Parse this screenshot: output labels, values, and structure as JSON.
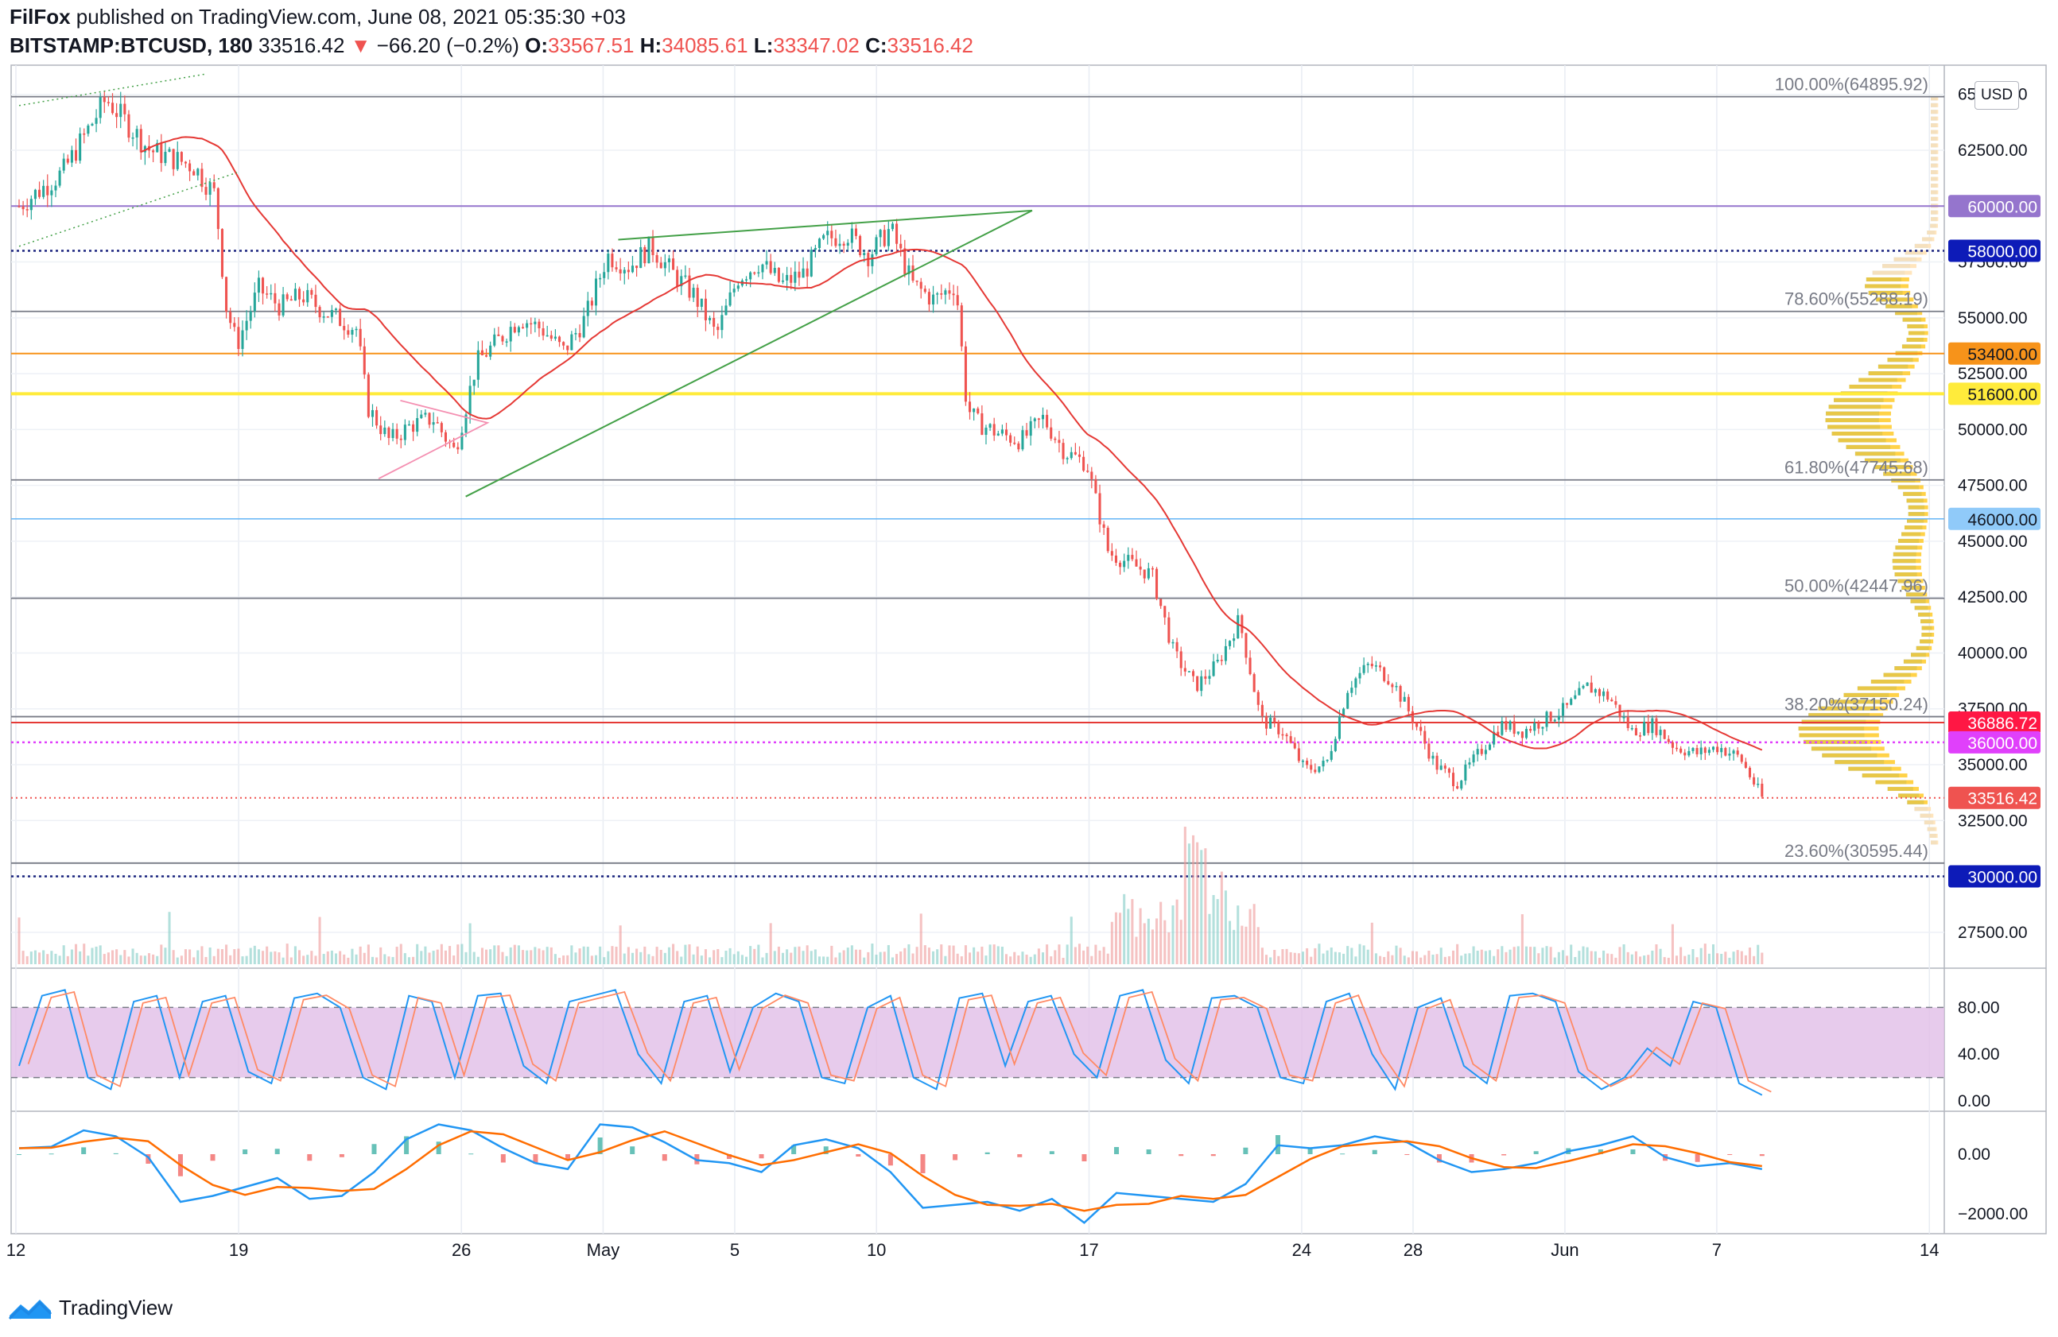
{
  "header": {
    "line1": {
      "author": "FilFox",
      "published_text": " published on TradingView.com, June 08, 2021 05:35:30 +03"
    },
    "line2": {
      "symbol": "BITSTAMP:BTCUSD, 180",
      "last": "33516.42",
      "arrow": "▼",
      "change": "−66.20 (−0.2%)",
      "o_label": "O:",
      "o_value": "33567.51",
      "h_label": "H:",
      "h_value": "34085.61",
      "l_label": "L:",
      "l_value": "33347.02",
      "c_label": "C:",
      "c_value": "33516.42"
    }
  },
  "currency_button": "USD",
  "footer": {
    "brand": "TradingView"
  },
  "colors": {
    "up": "#26a69a",
    "down": "#ef5350",
    "ma": "#e53935",
    "ma_green": "#43a047",
    "purple_line": "#9575cd",
    "blue_dotted": "#1a237e",
    "orange_line": "#f7931a",
    "yellow_line": "#ffeb3b",
    "stoch_band": "#e1bee7",
    "macd_fast": "#2196f3",
    "macd_slow": "#ff6d00"
  },
  "chart_data": {
    "type": "candlestick",
    "title": "BITSTAMP:BTCUSD, 180",
    "y_axis_ticks": [
      "65000.00",
      "62500.00",
      "60000.00",
      "57500.00",
      "55000.00",
      "52500.00",
      "50000.00",
      "47500.00",
      "45000.00",
      "42500.00",
      "40000.00",
      "37500.00",
      "35000.00",
      "32500.00",
      "30000.00",
      "27500.00"
    ],
    "y_axis_tick_values": [
      65000,
      62500,
      60000,
      57500,
      55000,
      52500,
      50000,
      47500,
      45000,
      42500,
      40000,
      37500,
      35000,
      32500,
      30000,
      27500
    ],
    "ylim": [
      26000,
      66200
    ],
    "x_axis_labels": [
      "12",
      "19",
      "26",
      "May",
      "5",
      "10",
      "17",
      "24",
      "28",
      "Jun",
      "7",
      "14"
    ],
    "fib_levels": [
      {
        "label": "100.00%(64895.92)",
        "value": 64895.92
      },
      {
        "label": "78.60%(55288.19)",
        "value": 55288.19
      },
      {
        "label": "61.80%(47745.68)",
        "value": 47745.68
      },
      {
        "label": "50.00%(42447.96)",
        "value": 42447.96
      },
      {
        "label": "38.20%(37150.24)",
        "value": 37150.24
      },
      {
        "label": "23.60%(30595.44)",
        "value": 30595.44
      }
    ],
    "price_labels": [
      {
        "text": "60000.00",
        "value": 60000,
        "bg": "#9575cd"
      },
      {
        "text": "58000.00",
        "value": 58000,
        "bg": "#0d1bb8"
      },
      {
        "text": "53400.00",
        "value": 53400,
        "bg": "#f7931a"
      },
      {
        "text": "51600.00",
        "value": 51600,
        "bg": "#ffeb3b"
      },
      {
        "text": "46000.00",
        "value": 46000,
        "bg": "#90caf9"
      },
      {
        "text": "36886.72",
        "value": 36886.72,
        "bg": "#ff1744"
      },
      {
        "text": "36000.00",
        "value": 36000,
        "bg": "#e040fb"
      },
      {
        "text": "33516.42",
        "value": 33516.42,
        "bg": "#ef5350"
      },
      {
        "text": "30000.00",
        "value": 30000,
        "bg": "#0d1bb8"
      }
    ],
    "price_path": [
      {
        "t": 0,
        "p": 60000
      },
      {
        "t": 2,
        "p": 61500
      },
      {
        "t": 4,
        "p": 64800
      },
      {
        "t": 6,
        "p": 62500
      },
      {
        "t": 8,
        "p": 61800
      },
      {
        "t": 9,
        "p": 60500
      },
      {
        "t": 9.5,
        "p": 55500
      },
      {
        "t": 10,
        "p": 53800
      },
      {
        "t": 11,
        "p": 56300
      },
      {
        "t": 12,
        "p": 55500
      },
      {
        "t": 13,
        "p": 56000
      },
      {
        "t": 14,
        "p": 55300
      },
      {
        "t": 15.5,
        "p": 54500
      },
      {
        "t": 16,
        "p": 51000
      },
      {
        "t": 17,
        "p": 49500
      },
      {
        "t": 18,
        "p": 50200
      },
      {
        "t": 19,
        "p": 50500
      },
      {
        "t": 20,
        "p": 49000
      },
      {
        "t": 21,
        "p": 53000
      },
      {
        "t": 22,
        "p": 54000
      },
      {
        "t": 23,
        "p": 55000
      },
      {
        "t": 24,
        "p": 54500
      },
      {
        "t": 25,
        "p": 53500
      },
      {
        "t": 26,
        "p": 55000
      },
      {
        "t": 27,
        "p": 57800
      },
      {
        "t": 28,
        "p": 57300
      },
      {
        "t": 29,
        "p": 58200
      },
      {
        "t": 30,
        "p": 57000
      },
      {
        "t": 31,
        "p": 56000
      },
      {
        "t": 32,
        "p": 54200
      },
      {
        "t": 33,
        "p": 56800
      },
      {
        "t": 34,
        "p": 57500
      },
      {
        "t": 35,
        "p": 56500
      },
      {
        "t": 36,
        "p": 57000
      },
      {
        "t": 37,
        "p": 58500
      },
      {
        "t": 38,
        "p": 58800
      },
      {
        "t": 39,
        "p": 57800
      },
      {
        "t": 40,
        "p": 59000
      },
      {
        "t": 41,
        "p": 56500
      },
      {
        "t": 42,
        "p": 55800
      },
      {
        "t": 43,
        "p": 56500
      },
      {
        "t": 43.5,
        "p": 51000
      },
      {
        "t": 44,
        "p": 50300
      },
      {
        "t": 45,
        "p": 49800
      },
      {
        "t": 46,
        "p": 49500
      },
      {
        "t": 47,
        "p": 50500
      },
      {
        "t": 48,
        "p": 49000
      },
      {
        "t": 49,
        "p": 48500
      },
      {
        "t": 50,
        "p": 44500
      },
      {
        "t": 51,
        "p": 44000
      },
      {
        "t": 52,
        "p": 43500
      },
      {
        "t": 53,
        "p": 40000
      },
      {
        "t": 54,
        "p": 38500
      },
      {
        "t": 55,
        "p": 39500
      },
      {
        "t": 56,
        "p": 41500
      },
      {
        "t": 57,
        "p": 37000
      },
      {
        "t": 58,
        "p": 36500
      },
      {
        "t": 59,
        "p": 34800
      },
      {
        "t": 60,
        "p": 35000
      },
      {
        "t": 61,
        "p": 38500
      },
      {
        "t": 62,
        "p": 39500
      },
      {
        "t": 63,
        "p": 38800
      },
      {
        "t": 64,
        "p": 37000
      },
      {
        "t": 65,
        "p": 35000
      },
      {
        "t": 66,
        "p": 34200
      },
      {
        "t": 67,
        "p": 35500
      },
      {
        "t": 68,
        "p": 36800
      },
      {
        "t": 69,
        "p": 36500
      },
      {
        "t": 70,
        "p": 37000
      },
      {
        "t": 71,
        "p": 37500
      },
      {
        "t": 72,
        "p": 38500
      },
      {
        "t": 73,
        "p": 38000
      },
      {
        "t": 74,
        "p": 36500
      },
      {
        "t": 75,
        "p": 36800
      },
      {
        "t": 76,
        "p": 35800
      },
      {
        "t": 77,
        "p": 35500
      },
      {
        "t": 78,
        "p": 35800
      },
      {
        "t": 79,
        "p": 35300
      },
      {
        "t": 80,
        "p": 33516
      }
    ],
    "stoch_ticks": [
      "80.00",
      "40.00",
      "0.00"
    ],
    "stoch_tick_values": [
      80,
      40,
      0
    ],
    "stoch_band": [
      20,
      80
    ],
    "stoch_path": [
      30,
      90,
      95,
      20,
      10,
      85,
      90,
      20,
      85,
      90,
      25,
      15,
      88,
      92,
      80,
      20,
      10,
      90,
      85,
      20,
      90,
      92,
      30,
      15,
      85,
      90,
      95,
      40,
      15,
      85,
      90,
      25,
      80,
      92,
      85,
      20,
      15,
      80,
      90,
      20,
      10,
      88,
      92,
      30,
      85,
      90,
      40,
      20,
      90,
      95,
      35,
      15,
      88,
      90,
      80,
      20,
      15,
      85,
      92,
      40,
      10,
      80,
      88,
      30,
      15,
      90,
      92,
      85,
      25,
      10,
      20,
      45,
      30,
      85,
      80,
      15,
      5
    ],
    "macd_ticks": [
      "0.00",
      "−2000.00"
    ],
    "macd_tick_values": [
      0,
      -2000
    ],
    "macd_path": [
      200,
      250,
      800,
      600,
      -100,
      -1600,
      -1400,
      -1100,
      -800,
      -1500,
      -1400,
      -600,
      500,
      1000,
      800,
      200,
      -300,
      -500,
      1000,
      900,
      400,
      -200,
      -300,
      -600,
      300,
      500,
      200,
      -600,
      -1800,
      -1700,
      -1600,
      -1900,
      -1500,
      -2300,
      -1300,
      -1400,
      -1500,
      -1600,
      -1000,
      300,
      200,
      300,
      600,
      400,
      -200,
      -600,
      -500,
      -300,
      100,
      300,
      600,
      -100,
      -400,
      -300,
      -500
    ]
  }
}
